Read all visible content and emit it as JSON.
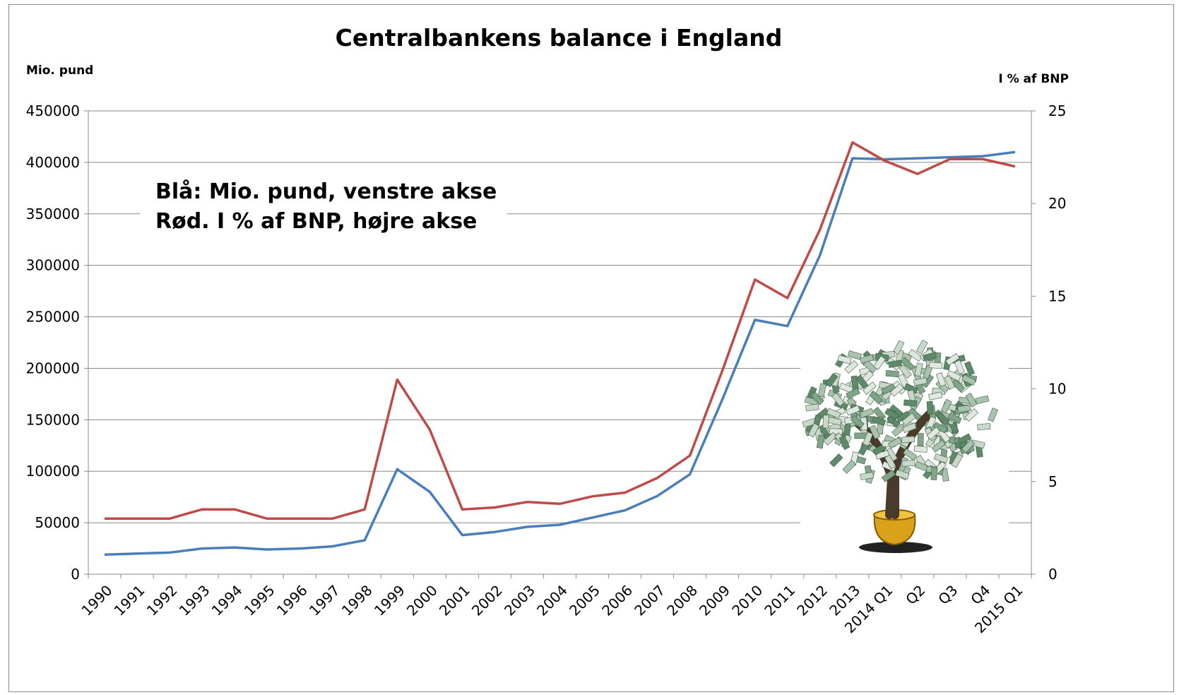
{
  "chart_data": {
    "type": "line",
    "title": "Centralbankens balance i England",
    "ylabel_left": "Mio. pund",
    "ylabel_right": "I % af BNP",
    "annotation_lines": [
      "Blå: Mio. pund, venstre akse",
      "Rød. I % af BNP, højre akse"
    ],
    "categories": [
      "1990",
      "1991",
      "1992",
      "1993",
      "1994",
      "1995",
      "1996",
      "1997",
      "1998",
      "1999",
      "2000",
      "2001",
      "2002",
      "2003",
      "2004",
      "2005",
      "2006",
      "2007",
      "2008",
      "2009",
      "2010",
      "2011",
      "2012",
      "2013",
      "2014 Q1",
      "Q2",
      "Q3",
      "Q4",
      "2015 Q1"
    ],
    "ylim_left": [
      0,
      450000
    ],
    "yticks_left": [
      0,
      50000,
      100000,
      150000,
      200000,
      250000,
      300000,
      350000,
      400000,
      450000
    ],
    "ylim_right": [
      0,
      25
    ],
    "yticks_right": [
      0,
      5,
      10,
      15,
      20,
      25
    ],
    "grid": "horizontal",
    "series": [
      {
        "name": "Blå: Mio. pund",
        "axis": "left",
        "color": "#4a7ebb",
        "values": [
          19000,
          20000,
          21000,
          25000,
          26000,
          24000,
          25000,
          27000,
          33000,
          102000,
          80000,
          38000,
          41000,
          46000,
          48000,
          55000,
          62000,
          76000,
          97000,
          170000,
          247000,
          241000,
          310000,
          404000,
          403000,
          404000,
          405000,
          406000,
          410000
        ]
      },
      {
        "name": "Rød. I % af BNP",
        "axis": "right",
        "color": "#be4b48",
        "values": [
          3.0,
          3.0,
          3.0,
          3.5,
          3.5,
          3.0,
          3.0,
          3.0,
          3.5,
          10.5,
          7.8,
          3.5,
          3.6,
          3.9,
          3.8,
          4.2,
          4.4,
          5.2,
          6.4,
          11.0,
          15.9,
          14.9,
          18.6,
          23.3,
          22.3,
          21.6,
          22.4,
          22.4,
          22.0
        ]
      }
    ]
  },
  "image": {
    "name": "money-tree",
    "description_label": ""
  }
}
